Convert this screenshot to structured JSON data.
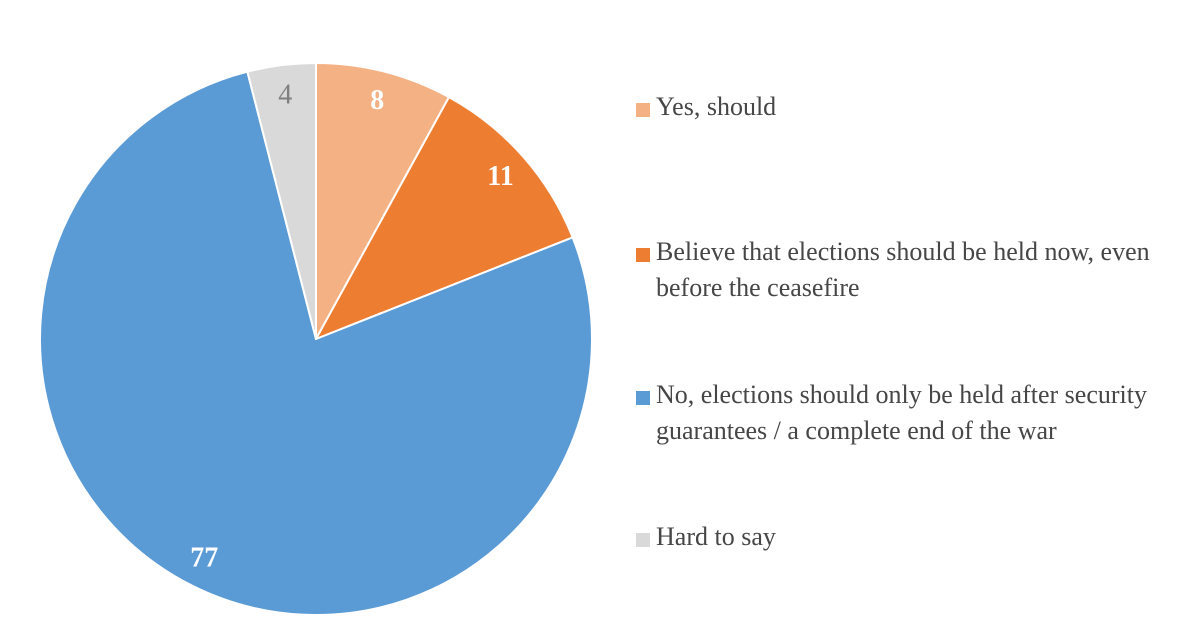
{
  "chart_data": {
    "type": "pie",
    "title": "",
    "unit": "percent",
    "direction": "clockwise",
    "start_angle_deg": 0,
    "legend_position": "right",
    "background_color": "#FFFFFF",
    "legend_text_color": "#464646",
    "slice_border_color": "#FFFFFF",
    "slices": [
      {
        "label": "Yes, should",
        "value": 8,
        "value_label": "8",
        "color": "#F4B183",
        "value_label_color": "#FFFFFF",
        "value_label_bold": true
      },
      {
        "label": "Believe that elections should be held now, even before the ceasefire",
        "value": 11,
        "value_label": "11",
        "color": "#ED7D31",
        "value_label_color": "#FFFFFF",
        "value_label_bold": true
      },
      {
        "label": "No, elections should only be held after security guarantees / a complete end of the war",
        "value": 77,
        "value_label": "77",
        "color": "#5B9BD5",
        "value_label_color": "#FFFFFF",
        "value_label_bold": true
      },
      {
        "label": "Hard to say",
        "value": 4,
        "value_label": "4",
        "color": "#D9D9D9",
        "value_label_color": "#7F7F7F",
        "value_label_bold": false
      }
    ]
  }
}
